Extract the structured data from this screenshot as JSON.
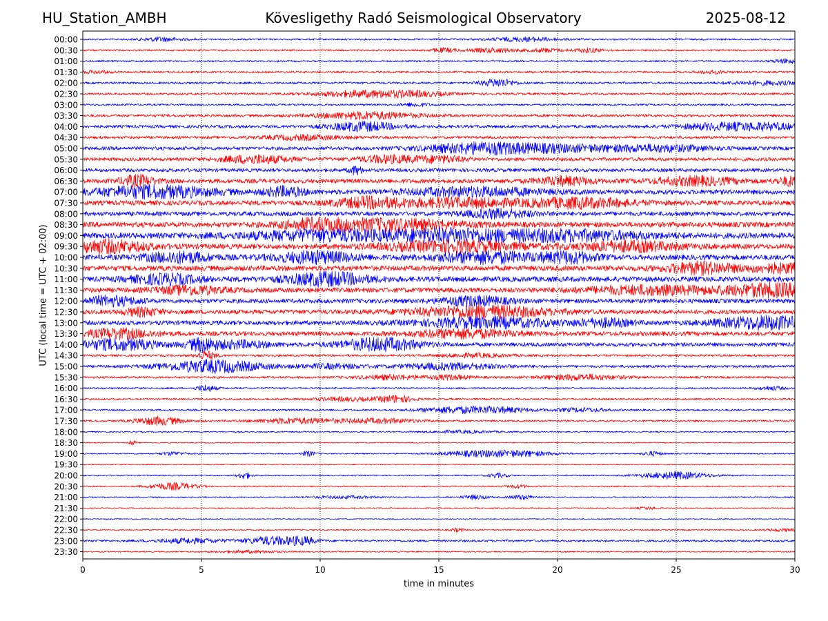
{
  "header": {
    "station": "HU_Station_AMBH",
    "observatory": "Kövesligethy Radó Seismological Observatory",
    "date": "2025-08-12"
  },
  "chart_data": {
    "type": "line",
    "subtype": "helicorder",
    "xlabel": "time in minutes",
    "ylabel": "UTC (local time = UTC + 02:00)",
    "xlim": [
      0,
      30
    ],
    "x_ticks": [
      0,
      5,
      10,
      15,
      20,
      25,
      30
    ],
    "x_grid": "dotted",
    "series_colors": [
      "#0000ff",
      "#ff0000"
    ],
    "rows": [
      {
        "label": "00:00",
        "noise": 0.2,
        "bursts": [
          [
            3.3,
            0.6,
            0.45
          ],
          [
            18.6,
            1.0,
            0.45
          ]
        ]
      },
      {
        "label": "00:30",
        "noise": 0.2,
        "bursts": [
          [
            15.2,
            0.4,
            0.45
          ],
          [
            17.3,
            0.7,
            0.5
          ],
          [
            19.5,
            0.5,
            0.4
          ],
          [
            21.3,
            0.4,
            0.5
          ]
        ]
      },
      {
        "label": "01:00",
        "noise": 0.2,
        "bursts": [
          [
            29.7,
            0.4,
            0.5
          ]
        ]
      },
      {
        "label": "01:30",
        "noise": 0.22,
        "bursts": [
          [
            0.5,
            0.5,
            0.3
          ],
          [
            26.5,
            0.5,
            0.3
          ]
        ]
      },
      {
        "label": "02:00",
        "noise": 0.25,
        "bursts": [
          [
            17.5,
            0.5,
            0.9
          ],
          [
            28.8,
            1.2,
            0.4
          ]
        ]
      },
      {
        "label": "02:30",
        "noise": 0.25,
        "bursts": [
          [
            11.8,
            1.4,
            0.7
          ],
          [
            14.0,
            1.0,
            0.5
          ]
        ]
      },
      {
        "label": "03:00",
        "noise": 0.22,
        "bursts": [
          [
            14.0,
            0.4,
            0.4
          ]
        ]
      },
      {
        "label": "03:30",
        "noise": 0.3,
        "bursts": [
          [
            12.0,
            1.5,
            0.8
          ]
        ]
      },
      {
        "label": "04:00",
        "noise": 0.35,
        "bursts": [
          [
            11.8,
            1.0,
            1.0
          ],
          [
            26.8,
            1.2,
            0.7
          ],
          [
            29.0,
            1.0,
            0.6
          ]
        ]
      },
      {
        "label": "04:30",
        "noise": 0.3,
        "bursts": [
          [
            9.3,
            1.3,
            0.5
          ]
        ]
      },
      {
        "label": "05:00",
        "noise": 0.4,
        "bursts": [
          [
            16.5,
            1.5,
            0.8
          ],
          [
            19.3,
            2.5,
            0.8
          ],
          [
            24.5,
            1.5,
            0.6
          ]
        ]
      },
      {
        "label": "05:30",
        "noise": 0.4,
        "bursts": [
          [
            7.3,
            1.0,
            0.9
          ],
          [
            12.8,
            0.8,
            0.8
          ],
          [
            15.0,
            0.8,
            0.7
          ]
        ]
      },
      {
        "label": "06:00",
        "noise": 0.4,
        "bursts": [
          [
            11.5,
            0.2,
            0.9
          ]
        ]
      },
      {
        "label": "06:30",
        "noise": 0.5,
        "bursts": [
          [
            2.3,
            0.5,
            1.2
          ],
          [
            20.3,
            0.8,
            0.9
          ],
          [
            25.8,
            1.2,
            0.9
          ],
          [
            30.0,
            0.5,
            1.0
          ]
        ]
      },
      {
        "label": "07:00",
        "noise": 0.55,
        "bursts": [
          [
            3.0,
            1.8,
            1.3
          ],
          [
            8.5,
            0.6,
            1.0
          ],
          [
            16.5,
            2.0,
            0.9
          ]
        ]
      },
      {
        "label": "07:30",
        "noise": 0.55,
        "bursts": [
          [
            12.0,
            1.0,
            1.0
          ],
          [
            15.8,
            2.0,
            0.9
          ],
          [
            21.0,
            1.5,
            1.0
          ]
        ]
      },
      {
        "label": "08:00",
        "noise": 0.5,
        "bursts": [
          [
            17.5,
            1.0,
            0.9
          ]
        ]
      },
      {
        "label": "08:30",
        "noise": 0.6,
        "bursts": [
          [
            13.0,
            2.0,
            1.2
          ],
          [
            9.8,
            1.0,
            1.0
          ]
        ]
      },
      {
        "label": "09:00",
        "noise": 0.65,
        "bursts": [
          [
            10.5,
            2.5,
            1.1
          ],
          [
            20.0,
            2.5,
            1.1
          ],
          [
            15.5,
            1.5,
            1.0
          ]
        ]
      },
      {
        "label": "09:30",
        "noise": 0.6,
        "bursts": [
          [
            1.0,
            1.2,
            1.3
          ],
          [
            15.5,
            2.0,
            1.1
          ],
          [
            23.0,
            1.5,
            1.0
          ]
        ]
      },
      {
        "label": "10:00",
        "noise": 0.6,
        "bursts": [
          [
            4.0,
            1.0,
            1.1
          ],
          [
            9.8,
            1.2,
            1.2
          ],
          [
            17.0,
            1.5,
            1.2
          ],
          [
            20.5,
            0.8,
            1.1
          ]
        ]
      },
      {
        "label": "10:30",
        "noise": 0.6,
        "bursts": [
          [
            26.0,
            1.0,
            1.2
          ],
          [
            29.5,
            1.0,
            0.9
          ]
        ]
      },
      {
        "label": "11:00",
        "noise": 0.6,
        "bursts": [
          [
            10.3,
            1.2,
            1.4
          ],
          [
            3.5,
            1.0,
            1.0
          ]
        ]
      },
      {
        "label": "11:30",
        "noise": 0.55,
        "bursts": [
          [
            29.0,
            1.3,
            1.4
          ],
          [
            24.0,
            2.0,
            0.9
          ],
          [
            4.5,
            1.0,
            0.9
          ]
        ]
      },
      {
        "label": "12:00",
        "noise": 0.5,
        "bursts": [
          [
            1.2,
            0.8,
            1.0
          ],
          [
            16.5,
            1.0,
            1.0
          ]
        ]
      },
      {
        "label": "12:30",
        "noise": 0.5,
        "bursts": [
          [
            16.8,
            2.0,
            1.3
          ],
          [
            2.5,
            0.5,
            0.9
          ]
        ]
      },
      {
        "label": "13:00",
        "noise": 0.5,
        "bursts": [
          [
            17.0,
            2.0,
            1.1
          ],
          [
            28.8,
            1.5,
            1.4
          ],
          [
            22.0,
            0.8,
            0.8
          ]
        ]
      },
      {
        "label": "13:30",
        "noise": 0.5,
        "bursts": [
          [
            1.5,
            1.0,
            1.0
          ],
          [
            16.0,
            1.5,
            0.9
          ]
        ]
      },
      {
        "label": "14:00",
        "noise": 0.45,
        "bursts": [
          [
            1.5,
            1.2,
            1.2
          ],
          [
            5.0,
            0.4,
            1.3
          ],
          [
            12.5,
            1.2,
            1.4
          ],
          [
            6.5,
            1.0,
            0.8
          ]
        ]
      },
      {
        "label": "14:30",
        "noise": 0.25,
        "bursts": [
          [
            5.2,
            0.3,
            0.9
          ],
          [
            16.5,
            1.0,
            0.4
          ]
        ]
      },
      {
        "label": "15:00",
        "noise": 0.3,
        "bursts": [
          [
            5.5,
            1.5,
            1.4
          ],
          [
            15.5,
            1.5,
            0.7
          ],
          [
            10.5,
            1.0,
            0.5
          ]
        ]
      },
      {
        "label": "15:30",
        "noise": 0.25,
        "bursts": [
          [
            13.0,
            1.0,
            0.5
          ],
          [
            21.0,
            1.2,
            0.6
          ],
          [
            15.5,
            0.6,
            0.5
          ]
        ]
      },
      {
        "label": "16:00",
        "noise": 0.2,
        "bursts": [
          [
            5.2,
            0.3,
            0.7
          ],
          [
            29.0,
            0.4,
            0.4
          ]
        ]
      },
      {
        "label": "16:30",
        "noise": 0.22,
        "bursts": [
          [
            13.2,
            0.5,
            0.8
          ],
          [
            11.0,
            1.0,
            0.4
          ]
        ]
      },
      {
        "label": "17:00",
        "noise": 0.22,
        "bursts": [
          [
            15.5,
            1.0,
            0.6
          ],
          [
            17.5,
            1.0,
            0.6
          ],
          [
            21.0,
            0.8,
            0.4
          ]
        ]
      },
      {
        "label": "17:30",
        "noise": 0.22,
        "bursts": [
          [
            3.2,
            0.7,
            0.9
          ],
          [
            9.0,
            1.2,
            0.6
          ],
          [
            12.5,
            1.2,
            0.5
          ]
        ]
      },
      {
        "label": "18:00",
        "noise": 0.15,
        "bursts": [
          [
            16.0,
            1.0,
            0.3
          ]
        ]
      },
      {
        "label": "18:30",
        "noise": 0.12,
        "bursts": [
          [
            2.1,
            0.1,
            0.5
          ]
        ]
      },
      {
        "label": "19:00",
        "noise": 0.15,
        "bursts": [
          [
            3.8,
            0.4,
            0.4
          ],
          [
            9.5,
            0.2,
            0.6
          ],
          [
            16.5,
            1.0,
            0.6
          ],
          [
            18.5,
            1.0,
            0.6
          ],
          [
            24.0,
            0.3,
            0.5
          ]
        ]
      },
      {
        "label": "19:30",
        "noise": 0.12,
        "bursts": []
      },
      {
        "label": "20:00",
        "noise": 0.15,
        "bursts": [
          [
            6.8,
            0.2,
            0.8
          ],
          [
            25.0,
            1.0,
            0.8
          ],
          [
            17.5,
            0.3,
            0.5
          ]
        ]
      },
      {
        "label": "20:30",
        "noise": 0.15,
        "bursts": [
          [
            3.8,
            0.7,
            0.8
          ],
          [
            18.3,
            0.3,
            0.4
          ]
        ]
      },
      {
        "label": "21:00",
        "noise": 0.15,
        "bursts": [
          [
            16.5,
            0.4,
            0.5
          ],
          [
            18.5,
            0.4,
            0.5
          ],
          [
            11.0,
            1.0,
            0.3
          ]
        ]
      },
      {
        "label": "21:30",
        "noise": 0.12,
        "bursts": [
          [
            23.8,
            0.3,
            0.3
          ]
        ]
      },
      {
        "label": "22:00",
        "noise": 0.12,
        "bursts": []
      },
      {
        "label": "22:30",
        "noise": 0.15,
        "bursts": [
          [
            15.8,
            0.2,
            0.4
          ],
          [
            29.5,
            0.5,
            0.3
          ]
        ]
      },
      {
        "label": "23:00",
        "noise": 0.25,
        "bursts": [
          [
            8.0,
            0.8,
            0.9
          ],
          [
            9.3,
            0.4,
            0.7
          ],
          [
            4.5,
            1.0,
            0.5
          ]
        ]
      },
      {
        "label": "23:30",
        "noise": 0.14,
        "bursts": [
          [
            7.0,
            1.0,
            0.3
          ]
        ]
      }
    ]
  }
}
